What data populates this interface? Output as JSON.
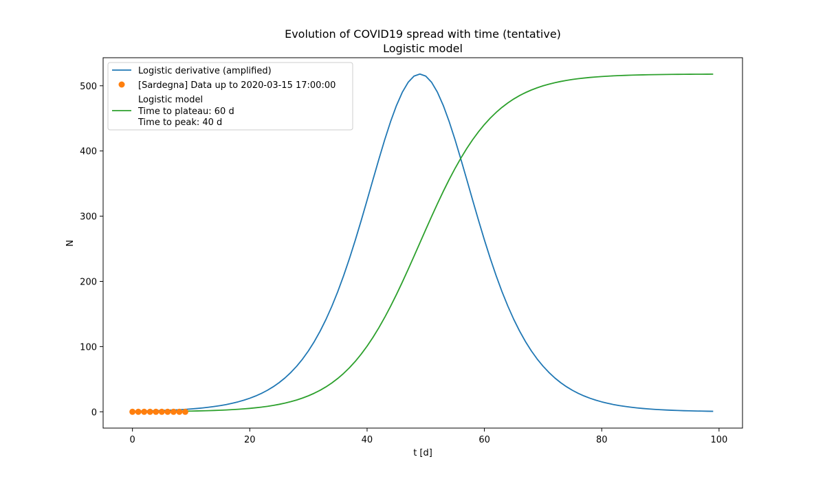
{
  "chart_data": {
    "type": "line",
    "title": "Evolution of COVID19 spread with time (tentative)",
    "subtitle": "Logistic model",
    "xlabel": "t [d]",
    "ylabel": "N",
    "xlim": [
      -5,
      104
    ],
    "ylim": [
      -25,
      543
    ],
    "xticks": [
      0,
      20,
      40,
      60,
      80,
      100
    ],
    "yticks": [
      0,
      100,
      200,
      300,
      400,
      500
    ],
    "grid": false,
    "legend_position": "top-left",
    "series": [
      {
        "name": "Logistic derivative (amplified)",
        "kind": "line",
        "color": "#1f77b4",
        "model": "logistic-derivative",
        "x_range": [
          0,
          99
        ],
        "peak_x": 49,
        "peak_y": 518,
        "growth_rate": 0.158
      },
      {
        "name": "[Sardegna] Data up to 2020-03-15 17:00:00",
        "kind": "scatter",
        "color": "#ff7f0e",
        "x": [
          0,
          1,
          2,
          3,
          4,
          5,
          6,
          7,
          8,
          9
        ],
        "y": [
          0,
          0,
          0,
          0,
          0,
          0,
          0,
          0,
          0,
          0
        ]
      },
      {
        "name_lines": [
          "Logistic model",
          "Time to plateau: 60 d",
          "Time to peak: 40 d"
        ],
        "kind": "line",
        "color": "#2ca02c",
        "model": "logistic",
        "x_range": [
          0,
          99
        ],
        "plateau": 518,
        "midpoint_x": 49,
        "growth_rate": 0.158
      }
    ]
  }
}
